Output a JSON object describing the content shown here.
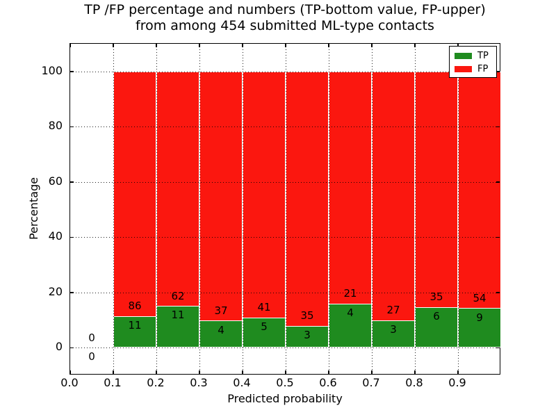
{
  "chart_data": {
    "type": "bar",
    "stacked": true,
    "title": "TP /FP percentage and numbers (TP-bottom value, FP-upper)",
    "subtitle": "from among 454 submitted ML-type contacts",
    "xlabel": "Predicted probability",
    "ylabel": "Percentage",
    "xlim": [
      0.0,
      1.0
    ],
    "ylim": [
      -10,
      110
    ],
    "grid": true,
    "grid_style": "dotted",
    "legend_position": "upper right",
    "x_ticks": [
      {
        "value": 0.0,
        "label": "0.0"
      },
      {
        "value": 0.1,
        "label": "0.1"
      },
      {
        "value": 0.2,
        "label": "0.2"
      },
      {
        "value": 0.3,
        "label": "0.3"
      },
      {
        "value": 0.4,
        "label": "0.4"
      },
      {
        "value": 0.5,
        "label": "0.5"
      },
      {
        "value": 0.6,
        "label": "0.6"
      },
      {
        "value": 0.7,
        "label": "0.7"
      },
      {
        "value": 0.8,
        "label": "0.8"
      },
      {
        "value": 0.9,
        "label": "0.9"
      }
    ],
    "y_ticks": [
      {
        "value": 0,
        "label": "0"
      },
      {
        "value": 20,
        "label": "20"
      },
      {
        "value": 40,
        "label": "40"
      },
      {
        "value": 60,
        "label": "60"
      },
      {
        "value": 80,
        "label": "80"
      },
      {
        "value": 100,
        "label": "100"
      }
    ],
    "bin_starts": [
      0.0,
      0.1,
      0.2,
      0.3,
      0.4,
      0.5,
      0.6,
      0.7,
      0.8,
      0.9
    ],
    "bin_width": 0.1,
    "series": [
      {
        "name": "TP",
        "color": "#1f8b1f",
        "counts": [
          0,
          11,
          11,
          4,
          5,
          3,
          4,
          3,
          6,
          9
        ]
      },
      {
        "name": "FP",
        "color": "#fb170f",
        "counts": [
          0,
          86,
          62,
          37,
          41,
          35,
          21,
          27,
          35,
          54
        ]
      }
    ],
    "total_contacts": 454
  }
}
